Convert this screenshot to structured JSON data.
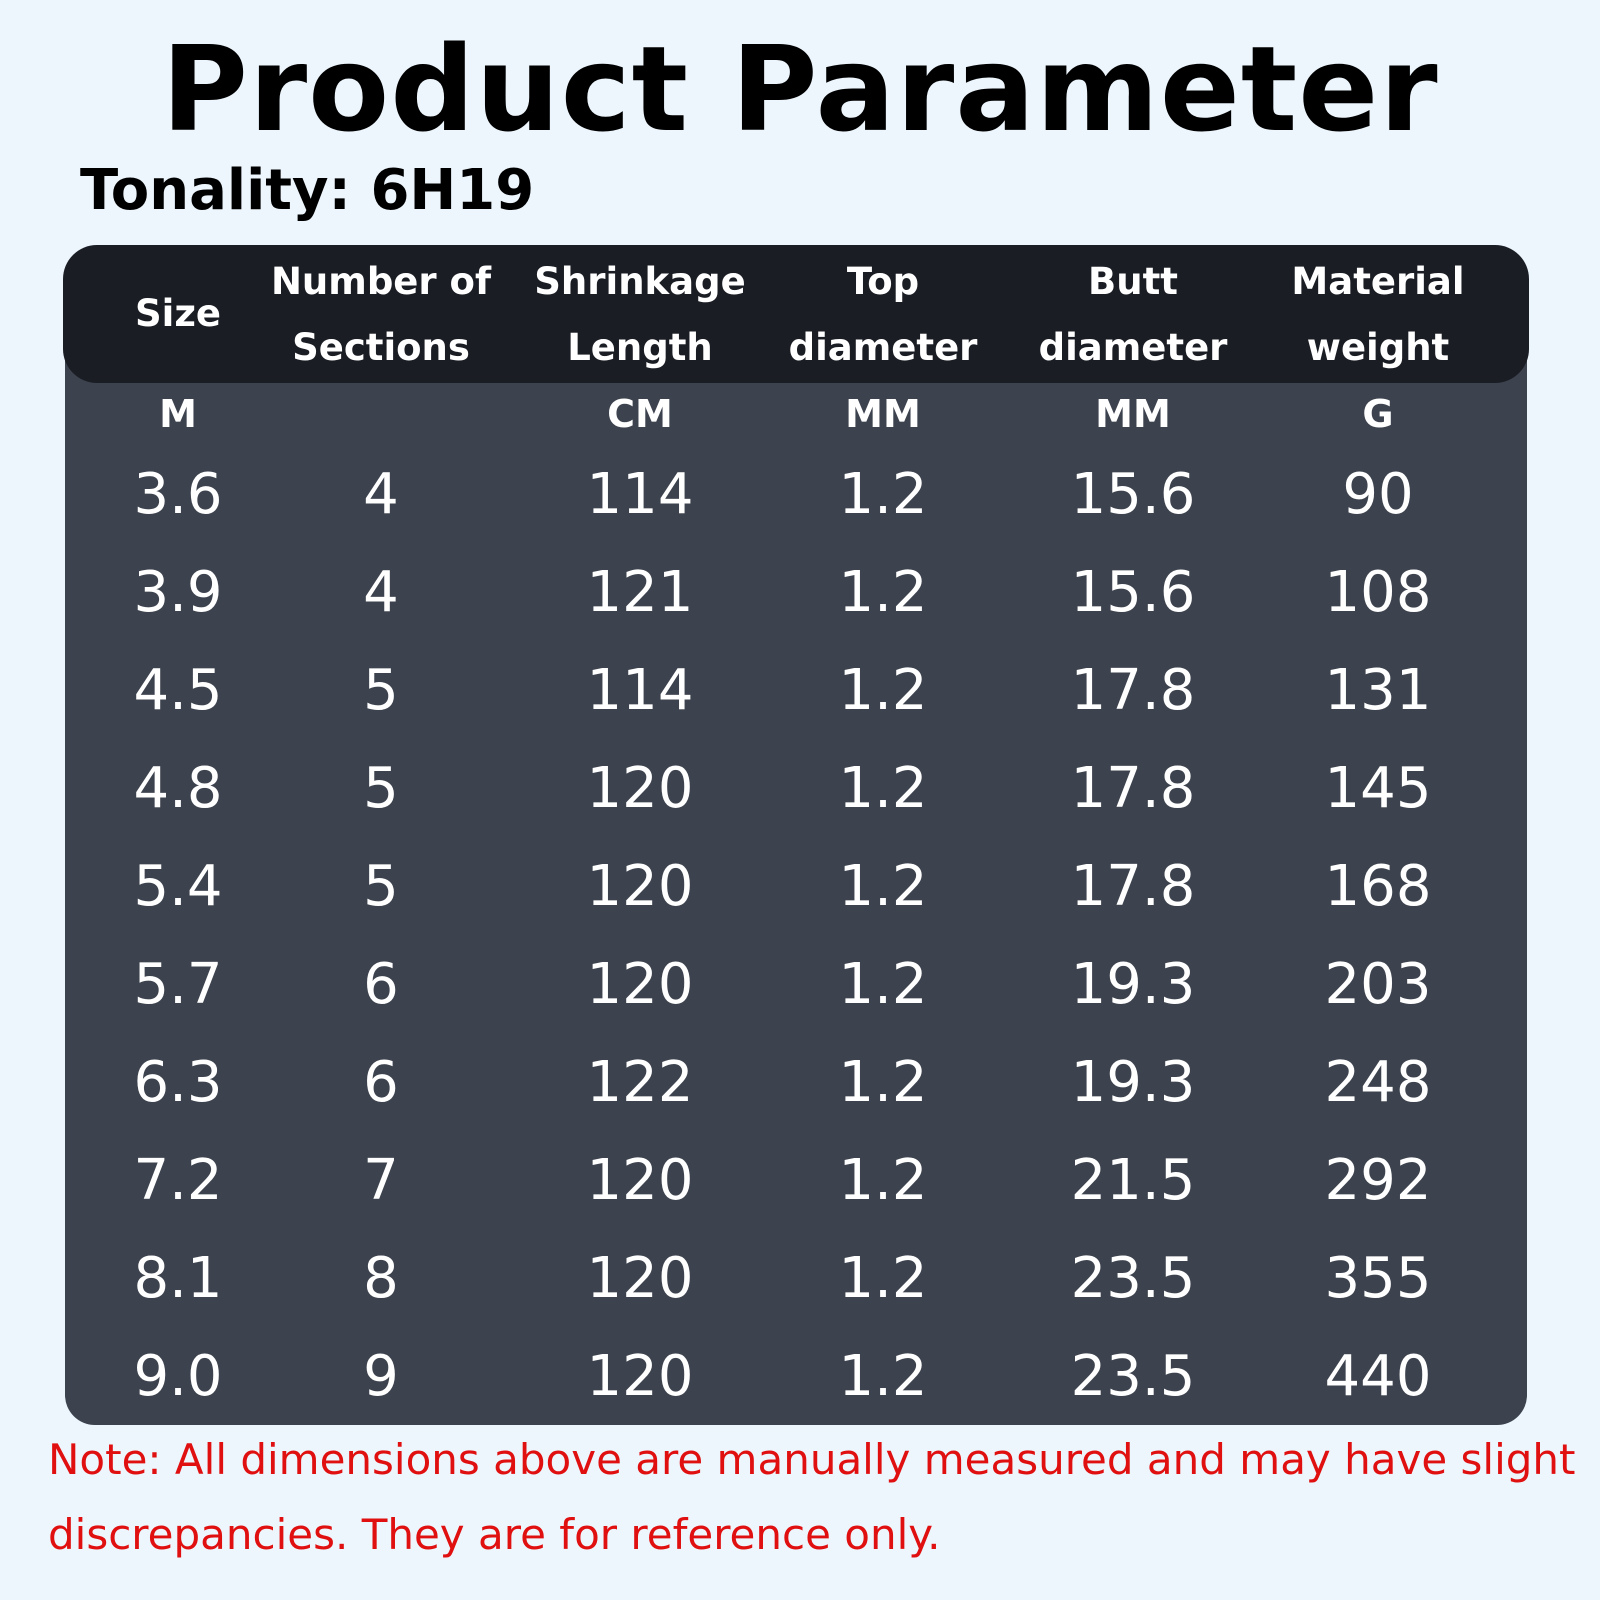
{
  "header": {
    "title": "Product Parameter",
    "subtitle": "Tonality: 6H19"
  },
  "table": {
    "columns": [
      {
        "header": [
          "Size"
        ],
        "unit": "M"
      },
      {
        "header": [
          "Number of",
          "Sections"
        ]
      },
      {
        "header": [
          "Shrinkage",
          "Length"
        ],
        "unit": "CM"
      },
      {
        "header": [
          "Top",
          "diameter"
        ],
        "unit": "MM"
      },
      {
        "header": [
          "Butt",
          "diameter"
        ],
        "unit": "MM"
      },
      {
        "header": [
          "Material",
          "weight"
        ],
        "unit": "G"
      }
    ],
    "rows": [
      [
        "3.6",
        "4",
        "114",
        "1.2",
        "15.6",
        "90"
      ],
      [
        "3.9",
        "4",
        "121",
        "1.2",
        "15.6",
        "108"
      ],
      [
        "4.5",
        "5",
        "114",
        "1.2",
        "17.8",
        "131"
      ],
      [
        "4.8",
        "5",
        "120",
        "1.2",
        "17.8",
        "145"
      ],
      [
        "5.4",
        "5",
        "120",
        "1.2",
        "17.8",
        "168"
      ],
      [
        "5.7",
        "6",
        "120",
        "1.2",
        "19.3",
        "203"
      ],
      [
        "6.3",
        "6",
        "122",
        "1.2",
        "19.3",
        "248"
      ],
      [
        "7.2",
        "7",
        "120",
        "1.2",
        "21.5",
        "292"
      ],
      [
        "8.1",
        "8",
        "120",
        "1.2",
        "23.5",
        "355"
      ],
      [
        "9.0",
        "9",
        "120",
        "1.2",
        "23.5",
        "440"
      ]
    ]
  },
  "note": {
    "lines": [
      "Note: All dimensions above are manually measured and may have slight",
      "discrepancies. They are for reference only."
    ]
  }
}
